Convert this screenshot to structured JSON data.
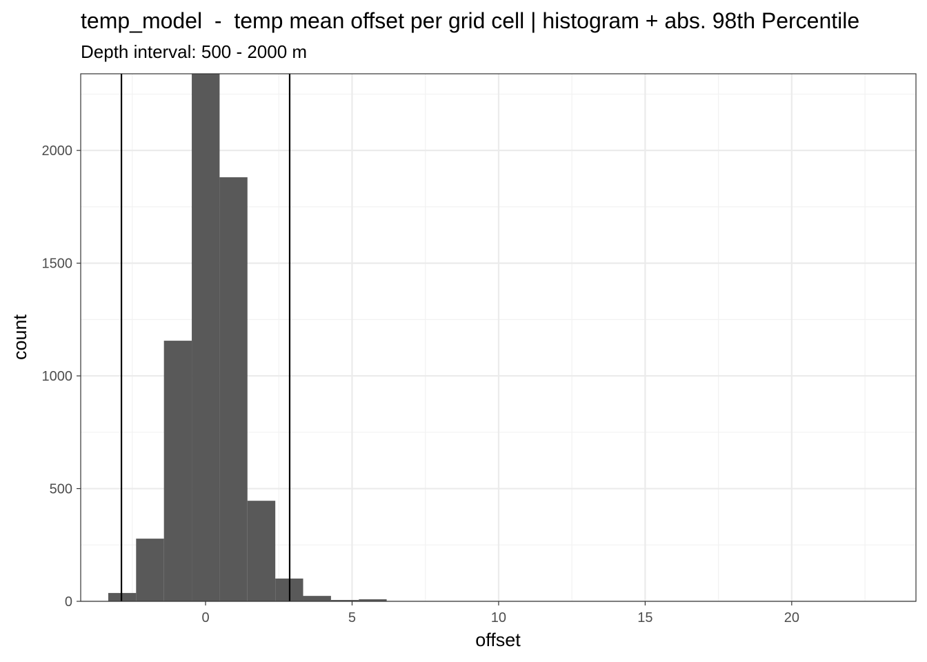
{
  "chart_data": {
    "type": "histogram",
    "title": "temp_model  -  temp mean offset per grid cell | histogram + abs. 98th Percentile",
    "subtitle": "Depth interval: 500 - 2000 m",
    "x_label": "offset",
    "y_label": "count",
    "bins": [
      -3.32,
      -2.37,
      -1.42,
      -0.47,
      0.48,
      1.43,
      2.38,
      3.33,
      4.28,
      5.23,
      6.18
    ],
    "values": [
      37,
      278,
      1156,
      2400,
      1881,
      446,
      101,
      24,
      6,
      9
    ],
    "color": "#595959",
    "vlines": [
      -2.87,
      2.87
    ],
    "xlim": [
      -4.26,
      24.24
    ],
    "xticks": [
      0,
      5,
      10,
      15,
      20
    ],
    "x_minor_grid": [
      -2.5,
      2.5,
      7.5,
      12.5,
      17.5,
      22.5
    ],
    "ylim": [
      0,
      2340
    ],
    "yticks": [
      0,
      500,
      1000,
      1500,
      2000
    ],
    "y_minor_grid": [
      250,
      750,
      1250,
      1750,
      2250
    ],
    "grid": true
  }
}
